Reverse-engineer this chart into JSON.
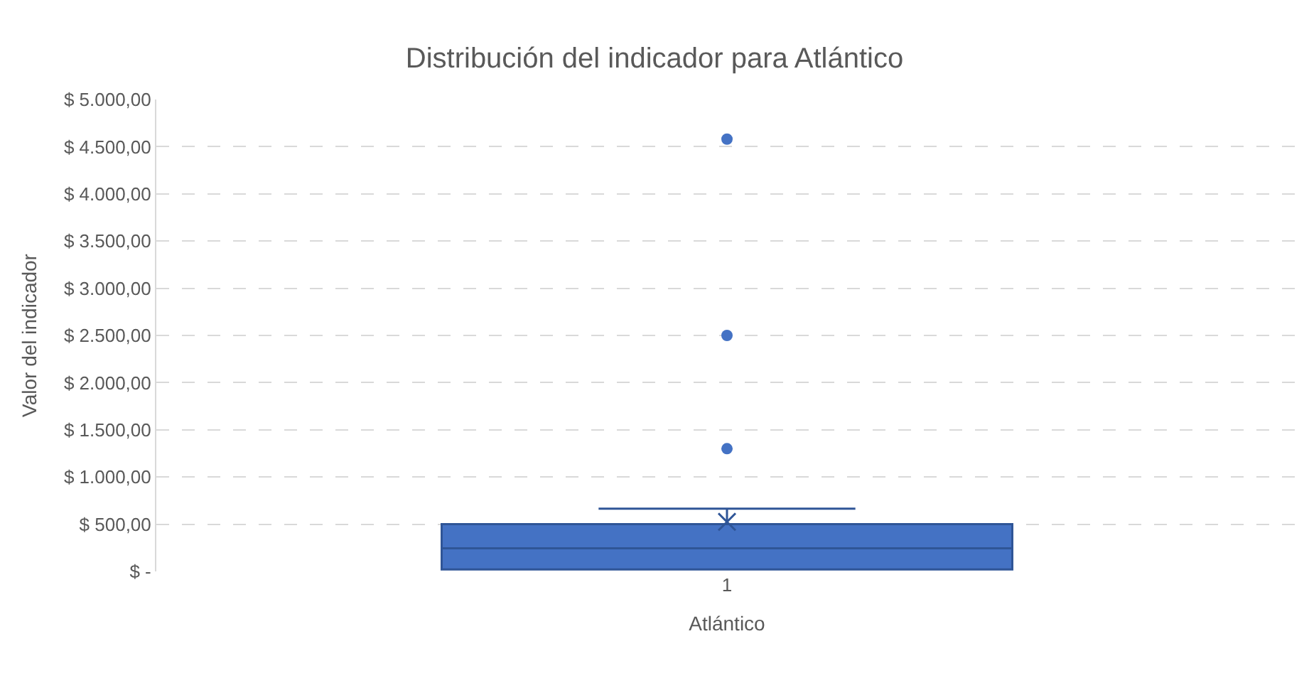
{
  "chart_data": {
    "type": "box",
    "title": "Distribución del indicador para Atlántico",
    "xlabel": "Atlántico",
    "ylabel": "Valor del indicador",
    "categories": [
      "1"
    ],
    "boxes": [
      {
        "q1": 20,
        "median": 245,
        "q3": 500,
        "high": 665,
        "mean": 525,
        "outliers": [
          1300,
          2500,
          4580
        ]
      }
    ],
    "color": "#4472c4",
    "ylim": [
      0,
      5000
    ],
    "yticks": [
      {
        "value": 0,
        "label": "$ -"
      },
      {
        "value": 500,
        "label": "$ 500,00"
      },
      {
        "value": 1000,
        "label": "$ 1.000,00"
      },
      {
        "value": 1500,
        "label": "$ 1.500,00"
      },
      {
        "value": 2000,
        "label": "$ 2.000,00"
      },
      {
        "value": 2500,
        "label": "$ 2.500,00"
      },
      {
        "value": 3000,
        "label": "$ 3.000,00"
      },
      {
        "value": 3500,
        "label": "$ 3.500,00"
      },
      {
        "value": 4000,
        "label": "$ 4.000,00"
      },
      {
        "value": 4500,
        "label": "$ 4.500,00"
      },
      {
        "value": 5000,
        "label": "$ 5.000,00"
      }
    ],
    "grid": "y"
  }
}
